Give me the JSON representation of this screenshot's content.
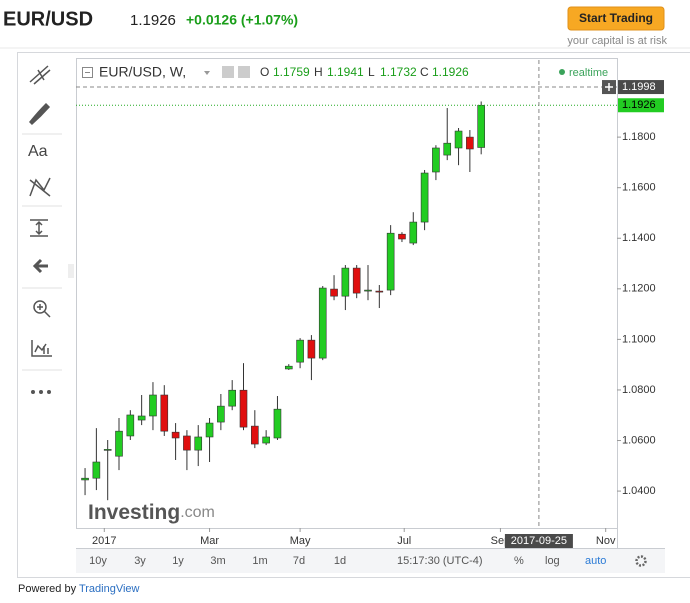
{
  "header": {
    "symbol": "EUR/USD",
    "price": "1.1926",
    "change": "+0.0126 (+1.07%)",
    "button": "Start Trading",
    "risk": "your capital is at risk"
  },
  "toolbar": {
    "font_tool": "Aa"
  },
  "chart_data": {
    "type": "candlestick",
    "title": "EUR/USD, W,",
    "ohlc_labels": [
      "O",
      "H",
      "L",
      "C"
    ],
    "realtime": "realtime",
    "watermark": "Investing",
    "watermark_suffix": ".com",
    "up_color": "#22cc22",
    "down_color": "#e00f0f",
    "open": [
      1.0444,
      1.0451,
      1.0561,
      1.0538,
      1.0618,
      1.0681,
      1.0697,
      1.078,
      1.0633,
      1.0618,
      1.0562,
      1.0614,
      1.0673,
      1.0736,
      1.0799,
      1.0657,
      1.059,
      1.061,
      1.0883,
      1.091,
      1.0997,
      1.0926,
      1.1199,
      1.1171,
      1.1282,
      1.1191,
      1.1191,
      1.1195,
      1.1416,
      1.1381,
      1.1464,
      1.1662,
      1.1729,
      1.1757,
      1.18,
      1.1759
    ],
    "high": [
      1.0491,
      1.0649,
      1.0602,
      1.0689,
      1.072,
      1.078,
      1.0831,
      1.0819,
      1.0669,
      1.0641,
      1.0661,
      1.0689,
      1.0784,
      1.0839,
      1.0906,
      1.072,
      1.0641,
      1.0776,
      1.0902,
      1.1005,
      1.1017,
      1.1211,
      1.1254,
      1.1294,
      1.1294,
      1.1294,
      1.1215,
      1.1452,
      1.1424,
      1.1503,
      1.167,
      1.1768,
      1.1915,
      1.1836,
      1.1828,
      1.1941
    ],
    "low": [
      1.0384,
      1.0404,
      1.0364,
      1.0483,
      1.0602,
      1.0661,
      1.0641,
      1.0618,
      1.0523,
      1.0483,
      1.0499,
      1.0515,
      1.0641,
      1.072,
      1.0641,
      1.057,
      1.0582,
      1.0602,
      1.0879,
      1.0886,
      1.0839,
      1.0918,
      1.1155,
      1.1116,
      1.1163,
      1.1155,
      1.1124,
      1.1175,
      1.1385,
      1.1373,
      1.1432,
      1.163,
      1.1709,
      1.1689,
      1.1662,
      1.1732
    ],
    "close": [
      1.0451,
      1.0515,
      1.0565,
      1.0637,
      1.0701,
      1.0697,
      1.078,
      1.0637,
      1.061,
      1.0562,
      1.0614,
      1.0669,
      1.0736,
      1.0799,
      1.0653,
      1.0586,
      1.0614,
      1.0724,
      1.0894,
      1.0997,
      1.0926,
      1.1203,
      1.1171,
      1.1282,
      1.1183,
      1.1195,
      1.1187,
      1.142,
      1.1397,
      1.1464,
      1.1658,
      1.1757,
      1.1776,
      1.1824,
      1.1753,
      1.1926
    ],
    "xlim": [
      -0.8,
      47
    ],
    "xticks": [
      {
        "value": 1.7,
        "label": "2017"
      },
      {
        "value": 11,
        "label": "Mar"
      },
      {
        "value": 19,
        "label": "May"
      },
      {
        "value": 28.2,
        "label": "Jul"
      },
      {
        "value": 36.7,
        "label": "Sep"
      },
      {
        "value": 46,
        "label": "Nov"
      }
    ],
    "ylim": [
      1.0254,
      1.2105
    ],
    "yticks": [
      {
        "value": 1.04,
        "label": "1.0400"
      },
      {
        "value": 1.06,
        "label": "1.0600"
      },
      {
        "value": 1.08,
        "label": "1.0800"
      },
      {
        "value": 1.1,
        "label": "1.1000"
      },
      {
        "value": 1.12,
        "label": "1.1200"
      },
      {
        "value": 1.14,
        "label": "1.1400"
      },
      {
        "value": 1.16,
        "label": "1.1600"
      },
      {
        "value": 1.18,
        "label": "1.1800"
      }
    ],
    "crosshair": {
      "x": {
        "value": 40.1,
        "label": "2017-09-25"
      },
      "y": 1.1998
    },
    "last_price": 1.1926
  },
  "bottom_bar": {
    "ranges": [
      "10y",
      "3y",
      "1y",
      "3m",
      "1m",
      "7d",
      "1d"
    ],
    "time": "15:17:30 (UTC-4)",
    "percent": "%",
    "log": "log",
    "auto": "auto"
  },
  "footer": {
    "prefix": "Powered by",
    "link": "TradingView"
  }
}
